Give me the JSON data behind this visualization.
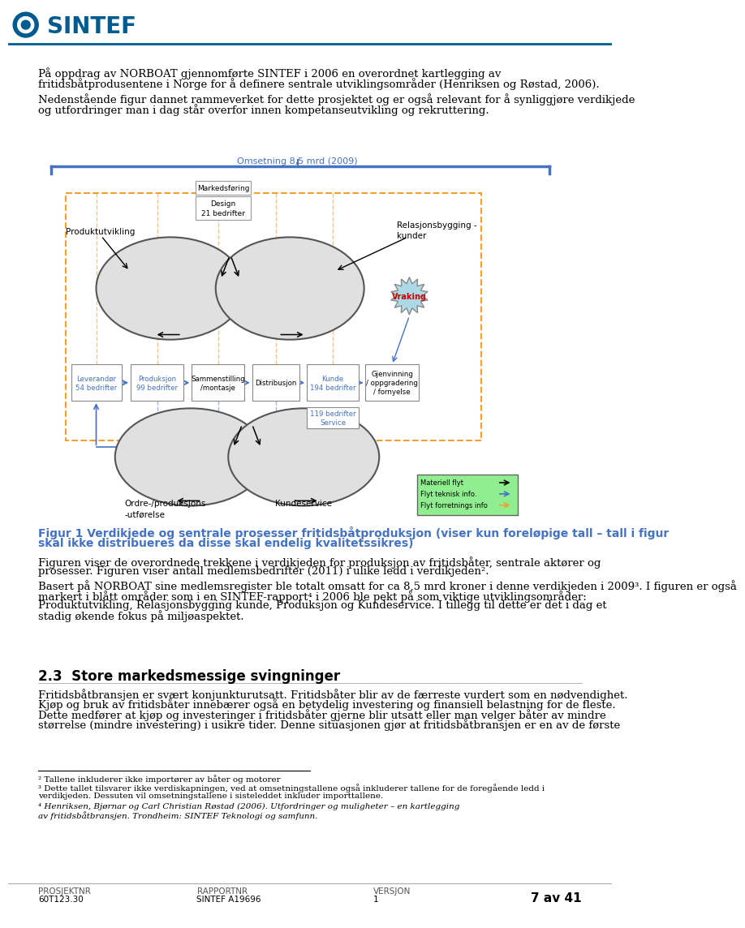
{
  "page_bg": "#ffffff",
  "header_text": "SINTEF",
  "header_blue": "#005b8e",
  "body_text_1a": "På oppdrag av NORBOAT gjennomførte SINTEF i 2006 en overordnet kartlegging av",
  "body_text_1b": "fritidsbåtprodusentene i Norge for å definere sentrale utviklingsområder (Henriksen og Røstad, 2006).",
  "body_text_2a": "Nedenstående figur dannet rammeverket for dette prosjektet og er også relevant for å synliggjøre verdikjede",
  "body_text_2b": "og utfordringer man i dag står overfor innen kompetanseutvikling og rekruttering.",
  "diagram_title": "Omsetning 8,5 mrd (2009)",
  "diagram_title_color": "#4472c4",
  "label_produktutvikling": "Produktutvikling",
  "label_markedsforing": "Markedsføring",
  "label_design": "Design\n21 bedrifter",
  "label_relasjonsbygging": "Relasjonsbygging -\nkunder",
  "label_vraking": "Vraking",
  "label_leverandor": "Leverandør\n54 bedrifter",
  "label_produksjon": "Produksjon\n99 bedrifter",
  "label_sammenstilling": "Sammenstilling\n/montasje",
  "label_distribusjon": "Distribusjon",
  "label_kunde": "Kunde\n194 bedrifter",
  "label_gjenvinning": "Gjenvinning\n/ oppgradering\n/ fornyelse",
  "label_service": "119 bedrifter\nService",
  "label_ordre": "Ordre-/produksjons\n-utførelse",
  "label_kundeservice": "Kundeservice",
  "legend_materiell": "Materiell flyt",
  "legend_teknisk": "Flyt teknisk info.",
  "legend_forretnings": "Flyt forretnings info",
  "cap_line1": "Figur 1 Verdikjede og sentrale prosesser fritidsbåtproduksjon (viser kun foreløpige tall – tall i figur",
  "cap_line2": "skal ikke distribueres da disse skal endelig kvalitetssikres)",
  "body3a": "Figuren viser de overordnede trekkene i verdikjeden for produksjon av fritidsbåter, sentrale aktører og",
  "body3b": "prosesser. Figuren viser antall medlemsbedrifter (2011) i ulike ledd i verdikjeden².",
  "body4a": "Basert på NORBOAT sine medlemsregister ble totalt omsatt for ca 8,5 mrd kroner i denne verdikjeden i 2009³. I figuren er også",
  "body4b": "markert i blått områder som i en SINTEF-rapport⁴ i 2006 ble pekt på som viktige utviklingsområder:",
  "body4c": "Produktutvikling, Relasjonsbygging kunde, Produksjon og Kundeservice. I tillegg til dette er det i dag et",
  "body4d": "stadig økende fokus på miljøaspektet.",
  "section_title": "2.3  Store markedsmessige svingninger",
  "sec1a": "Fritidsbåtbransjen er svært konjunkturutsatt. Fritidsbåter blir av de færreste vurdert som en nødvendighet.",
  "sec1b": "Kjøp og bruk av fritidsbåter innebærer også en betydelig investering og finansiell belastning for de fleste.",
  "sec1c": "Dette medfører at kjøp og investeringer i fritidsbåter gjerne blir utsatt eller man velger båter av mindre",
  "sec1d": "størrelse (mindre investering) i usikre tider. Denne situasjonen gjør at fritidsbåtbransjen er en av de første",
  "footnote_2": "² Tallene inkluderer ikke importører av båter og motorer",
  "footnote_3a": "³ Dette tallet tilsvarer ikke verdiskapningen, ved at omsetningstallene også inkluderer tallene for de foregående ledd i",
  "footnote_3b": "verdikjeden. Dessuten vil omsetningstallene i sisteleddet inkluder importtallene.",
  "footnote_4a": "⁴ Henriksen, Bjørnar og Carl Christian Røstad (2006). Utfordringer og muligheter – en kartlegging",
  "footnote_4b": "av fritidsbåtbransjen. Trondheim: SINTEF Teknologi og samfunn.",
  "footer_left1": "PROSJEKTNR",
  "footer_left2": "60T123.30",
  "footer_mid1": "RAPPORTNR",
  "footer_mid2": "SINTEF A19696",
  "footer_ver1": "VERSJON",
  "footer_ver2": "1",
  "footer_page": "7 av 41",
  "orange_dash": "#f0a030",
  "blue_main": "#4472c4",
  "gray_ellipse": "#e0e0e0",
  "vraking_fill": "#add8e6",
  "legend_fill": "#90ee90"
}
